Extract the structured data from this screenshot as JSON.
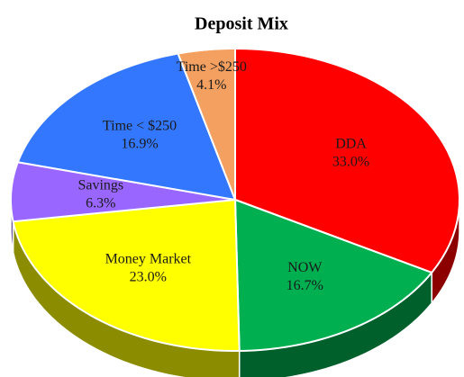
{
  "chart_data": {
    "type": "pie",
    "title": "Deposit Mix",
    "categories": [
      "DDA",
      "NOW",
      "Money Market",
      "Savings",
      "Time < $250",
      "Time >$250"
    ],
    "values": [
      33.0,
      16.7,
      23.0,
      6.3,
      16.9,
      4.1
    ],
    "value_labels": [
      "33.0%",
      "16.7%",
      "23.0%",
      "6.3%",
      "16.9%",
      "4.1%"
    ],
    "colors": [
      "#ff0000",
      "#00b050",
      "#ffff00",
      "#9966ff",
      "#3377ff",
      "#f4a060"
    ]
  }
}
